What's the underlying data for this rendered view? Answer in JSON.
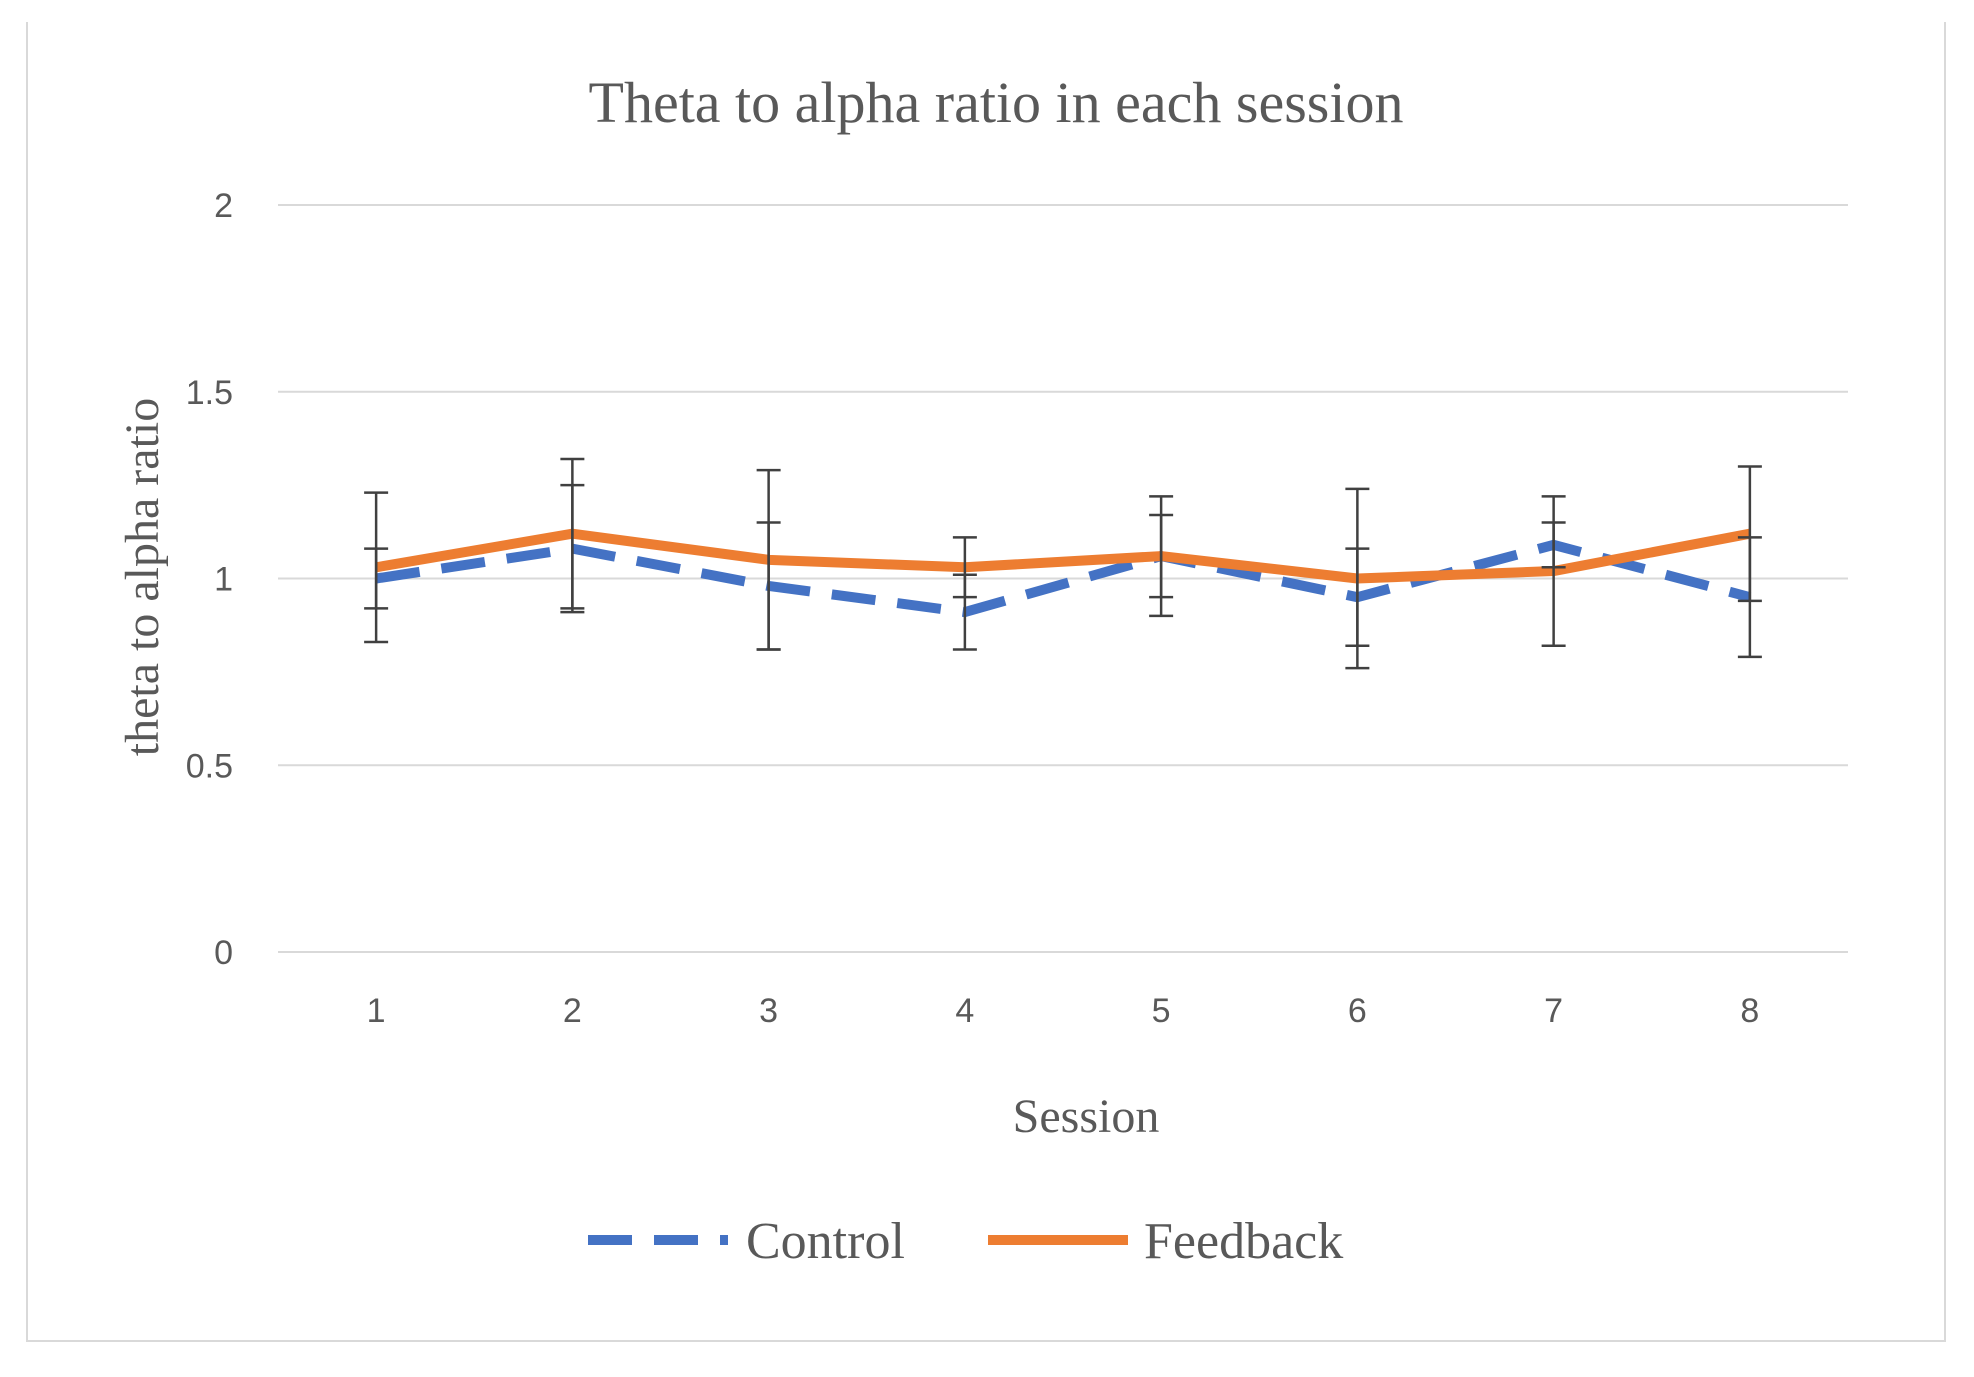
{
  "chart_data": {
    "type": "line",
    "title": "Theta to alpha ratio in each session",
    "xlabel": "Session",
    "ylabel": "theta to alpha ratio",
    "ylim": [
      0,
      2
    ],
    "yticks": [
      "0",
      "0.5",
      "1",
      "1.5",
      "2"
    ],
    "categories": [
      "1",
      "2",
      "3",
      "4",
      "5",
      "6",
      "7",
      "8"
    ],
    "grid": true,
    "legend_position": "bottom",
    "series": [
      {
        "name": "Control",
        "style": "dashed",
        "color": "#4472C4",
        "values": [
          1.0,
          1.08,
          0.98,
          0.91,
          1.06,
          0.95,
          1.09,
          0.95
        ],
        "error": [
          0.08,
          0.17,
          0.17,
          0.1,
          0.11,
          0.13,
          0.06,
          0.16
        ]
      },
      {
        "name": "Feedback",
        "style": "solid",
        "color": "#ED7D31",
        "values": [
          1.03,
          1.12,
          1.05,
          1.03,
          1.06,
          1.0,
          1.02,
          1.12
        ],
        "error": [
          0.2,
          0.2,
          0.24,
          0.08,
          0.16,
          0.24,
          0.2,
          0.18
        ]
      }
    ]
  }
}
